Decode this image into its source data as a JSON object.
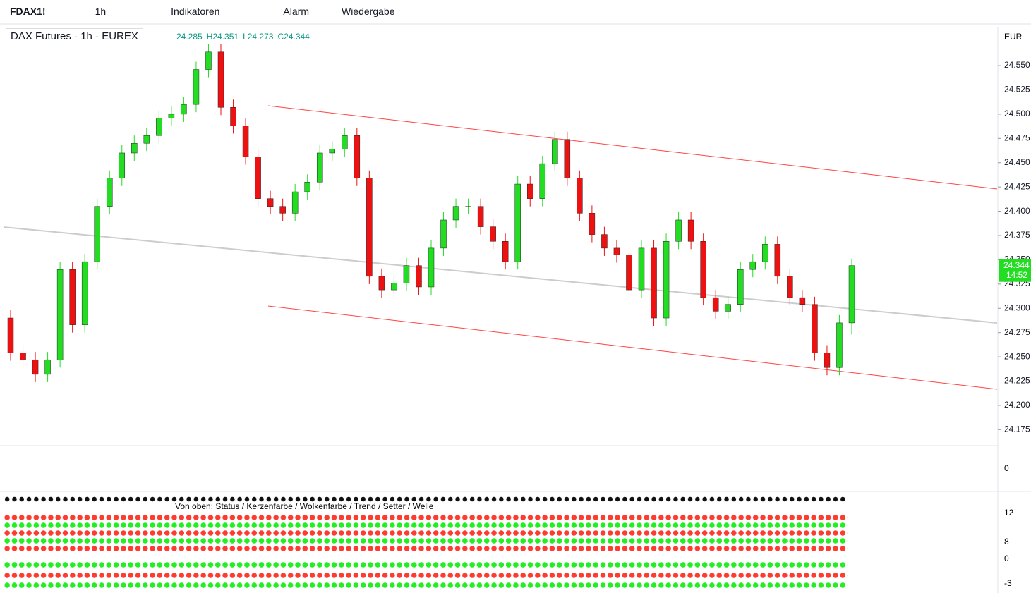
{
  "toolbar": {
    "symbol": "FDAX1!",
    "interval": "1h",
    "indicators": "Indikatoren",
    "alarm": "Alarm",
    "replay": "Wiedergabe"
  },
  "legend": {
    "title": "DAX Futures · 1h · EUREX",
    "ohlc": [
      "24.285",
      "H24.351",
      "L24.273",
      "C24.344"
    ]
  },
  "currency": "EUR",
  "indicator_note": "Von oben: Status / Kerzenfarbe / Wolkenfarbe / Trend / Setter / Welle",
  "indicator_axis": [
    "0",
    "12",
    "8",
    "0",
    "-3"
  ],
  "chart_data": {
    "type": "candlestick",
    "up_color": "#22dd22",
    "down_color": "#ee1111",
    "ylim": [
      24.16,
      24.59
    ],
    "yticks": [
      {
        "value": 24.175,
        "label": "24.175"
      },
      {
        "value": 24.2,
        "label": "24.200"
      },
      {
        "value": 24.225,
        "label": "24.225"
      },
      {
        "value": 24.25,
        "label": "24.250"
      },
      {
        "value": 24.275,
        "label": "24.275"
      },
      {
        "value": 24.3,
        "label": "24.300"
      },
      {
        "value": 24.325,
        "label": "24.325"
      },
      {
        "value": 24.35,
        "label": "24.350"
      },
      {
        "value": 24.375,
        "label": "24.375"
      },
      {
        "value": 24.4,
        "label": "24.400"
      },
      {
        "value": 24.425,
        "label": "24.425"
      },
      {
        "value": 24.45,
        "label": "24.450"
      },
      {
        "value": 24.475,
        "label": "24.475"
      },
      {
        "value": 24.5,
        "label": "24.500"
      },
      {
        "value": 24.525,
        "label": "24.525"
      },
      {
        "value": 24.55,
        "label": "24.550"
      }
    ],
    "price_label": {
      "value": 24.344,
      "label": "24.344"
    },
    "countdown": "14:52",
    "open": [
      24.29,
      24.254,
      24.247,
      24.232,
      24.247,
      24.34,
      24.283,
      24.348,
      24.405,
      24.434,
      24.46,
      24.47,
      24.478,
      24.496,
      24.5,
      24.51,
      24.546,
      24.564,
      24.507,
      24.488,
      24.456,
      24.413,
      24.405,
      24.398,
      24.42,
      24.43,
      24.46,
      24.464,
      24.478,
      24.434,
      24.333,
      24.319,
      24.326,
      24.344,
      24.322,
      24.362,
      24.391,
      24.405,
      24.405,
      24.384,
      24.369,
      24.348,
      24.428,
      24.413,
      24.449,
      24.474,
      24.434,
      24.398,
      24.376,
      24.362,
      24.355,
      24.319,
      24.362,
      24.29,
      24.369,
      24.391,
      24.369,
      24.311,
      24.297,
      24.304,
      24.34,
      24.348,
      24.366,
      24.333,
      24.311,
      24.304,
      24.254,
      24.239,
      24.285
    ],
    "high": [
      24.298,
      24.262,
      24.255,
      24.255,
      24.348,
      24.348,
      24.356,
      24.413,
      24.442,
      24.468,
      24.478,
      24.486,
      24.504,
      24.508,
      24.518,
      24.554,
      24.572,
      24.572,
      24.515,
      24.496,
      24.464,
      24.421,
      24.413,
      24.428,
      24.438,
      24.468,
      24.472,
      24.486,
      24.486,
      24.442,
      24.341,
      24.334,
      24.352,
      24.352,
      24.37,
      24.399,
      24.413,
      24.413,
      24.413,
      24.392,
      24.377,
      24.436,
      24.436,
      24.457,
      24.482,
      24.482,
      24.442,
      24.406,
      24.384,
      24.37,
      24.363,
      24.37,
      24.37,
      24.377,
      24.399,
      24.399,
      24.377,
      24.319,
      24.312,
      24.348,
      24.356,
      24.374,
      24.374,
      24.341,
      24.319,
      24.312,
      24.262,
      24.293,
      24.351
    ],
    "low": [
      24.246,
      24.239,
      24.224,
      24.224,
      24.239,
      24.275,
      24.275,
      24.34,
      24.397,
      24.426,
      24.452,
      24.462,
      24.47,
      24.488,
      24.492,
      24.502,
      24.538,
      24.499,
      24.48,
      24.448,
      24.405,
      24.397,
      24.39,
      24.39,
      24.412,
      24.422,
      24.452,
      24.456,
      24.426,
      24.325,
      24.311,
      24.311,
      24.318,
      24.314,
      24.314,
      24.354,
      24.383,
      24.397,
      24.376,
      24.361,
      24.34,
      24.34,
      24.405,
      24.405,
      24.441,
      24.426,
      24.39,
      24.368,
      24.354,
      24.347,
      24.311,
      24.311,
      24.282,
      24.282,
      24.361,
      24.361,
      24.303,
      24.289,
      24.289,
      24.296,
      24.332,
      24.34,
      24.325,
      24.303,
      24.296,
      24.246,
      24.231,
      24.231,
      24.273
    ],
    "close": [
      24.254,
      24.247,
      24.232,
      24.247,
      24.34,
      24.283,
      24.348,
      24.405,
      24.434,
      24.46,
      24.47,
      24.478,
      24.496,
      24.5,
      24.51,
      24.546,
      24.564,
      24.507,
      24.488,
      24.456,
      24.413,
      24.405,
      24.398,
      24.42,
      24.43,
      24.46,
      24.464,
      24.478,
      24.434,
      24.333,
      24.319,
      24.326,
      24.344,
      24.322,
      24.362,
      24.391,
      24.405,
      24.405,
      24.384,
      24.369,
      24.348,
      24.428,
      24.413,
      24.449,
      24.474,
      24.434,
      24.398,
      24.376,
      24.362,
      24.355,
      24.319,
      24.362,
      24.29,
      24.369,
      24.391,
      24.369,
      24.311,
      24.297,
      24.304,
      24.34,
      24.348,
      24.366,
      24.333,
      24.311,
      24.304,
      24.254,
      24.239,
      24.285,
      24.344
    ]
  }
}
